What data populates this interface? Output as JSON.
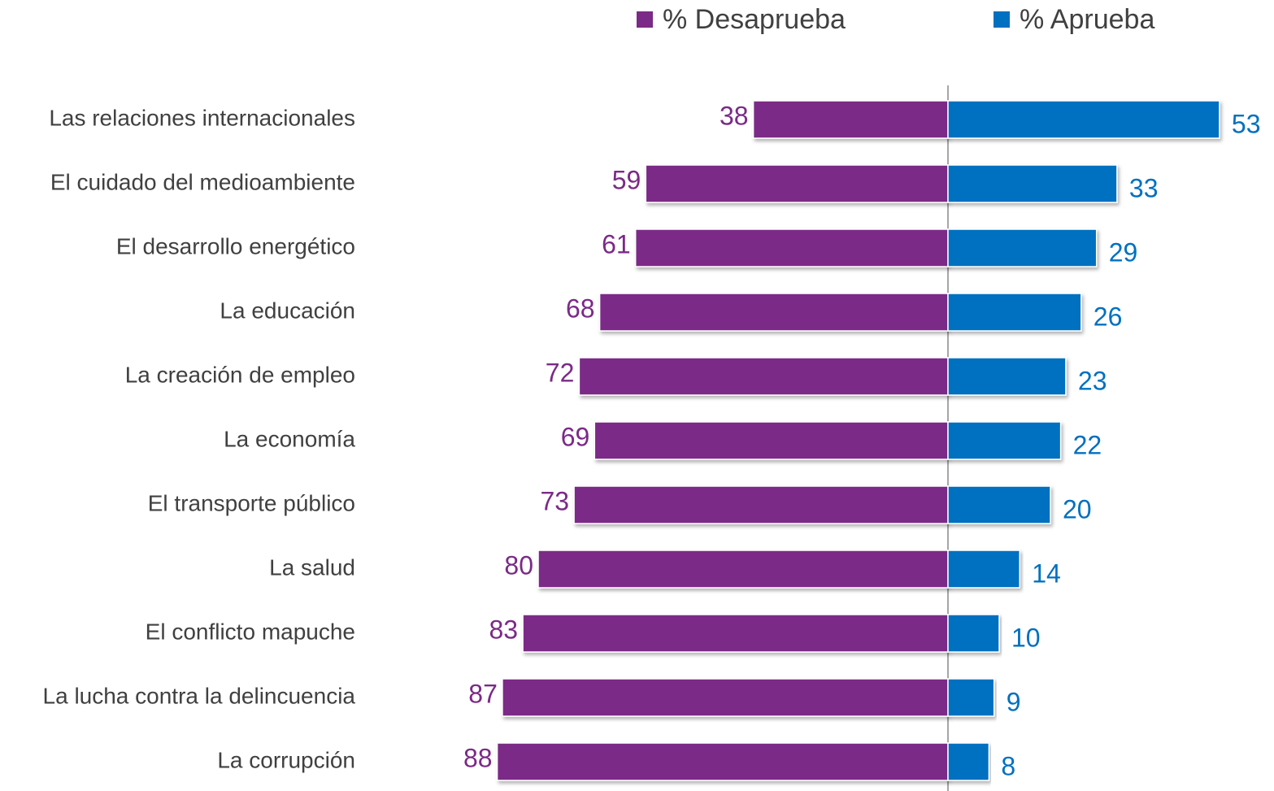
{
  "chart_data": {
    "type": "bar",
    "categories": [
      "Las relaciones internacionales",
      "El cuidado del medioambiente",
      "El desarrollo energético ",
      "La educación",
      "La creación de empleo",
      "La economía",
      "El transporte público",
      "La salud",
      "El conflicto mapuche ",
      "La lucha contra la delincuencia",
      "La corrupción"
    ],
    "series": [
      {
        "name": "% Desaprueba",
        "color": "#7b2a87",
        "values": [
          38,
          59,
          61,
          68,
          72,
          69,
          73,
          80,
          83,
          87,
          88
        ]
      },
      {
        "name": "% Aprueba",
        "color": "#0070c0",
        "values": [
          53,
          33,
          29,
          26,
          23,
          22,
          20,
          14,
          10,
          9,
          8
        ]
      }
    ]
  }
}
